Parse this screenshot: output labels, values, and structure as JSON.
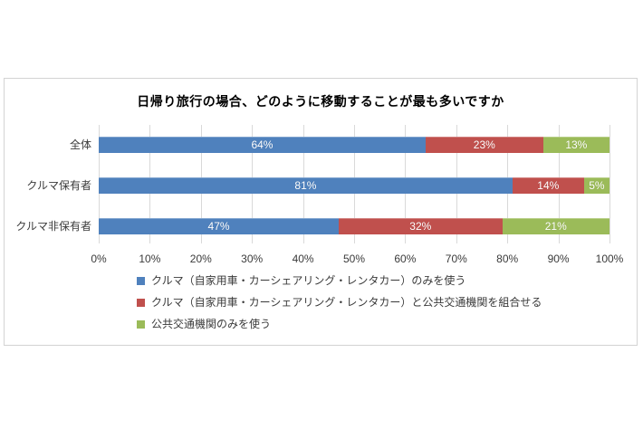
{
  "chart_data": {
    "type": "bar",
    "variant": "horizontal-stacked",
    "title": "日帰り旅行の場合、どのように移動することが最も多いですか",
    "categories": [
      "全体",
      "クルマ保有者",
      "クルマ非保有者"
    ],
    "series": [
      {
        "name": "クルマ（自家用車・カーシェアリング・レンタカー）のみを使う",
        "color": "#4F81BD",
        "values": [
          64,
          81,
          47
        ]
      },
      {
        "name": "クルマ（自家用車・カーシェアリング・レンタカー）と公共交通機関を組合せる",
        "color": "#C0504D",
        "values": [
          23,
          14,
          32
        ]
      },
      {
        "name": "公共交通機関のみを使う",
        "color": "#9BBB59",
        "values": [
          13,
          5,
          21
        ]
      }
    ],
    "data_label_format": "{value}%",
    "data_label_color": "#FFFFFF",
    "x_ticks": [
      "0%",
      "10%",
      "20%",
      "30%",
      "40%",
      "50%",
      "60%",
      "70%",
      "80%",
      "90%",
      "100%"
    ],
    "xlim": [
      0,
      100
    ],
    "grid": true,
    "gridline_color": "#D9D9D9",
    "plot_border_color": "#D3D3D3",
    "legend_position": "bottom-left"
  }
}
